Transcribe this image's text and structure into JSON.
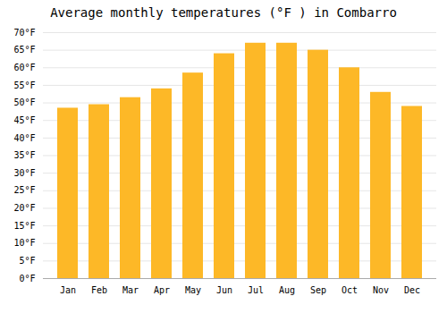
{
  "chart_data": {
    "type": "bar",
    "title": "Average monthly temperatures (°F ) in Combarro",
    "categories": [
      "Jan",
      "Feb",
      "Mar",
      "Apr",
      "May",
      "Jun",
      "Jul",
      "Aug",
      "Sep",
      "Oct",
      "Nov",
      "Dec"
    ],
    "values": [
      48.5,
      49.5,
      51.5,
      54,
      58.5,
      64,
      67,
      67,
      65,
      60,
      53,
      49
    ],
    "color": "#FDB827",
    "ylim": [
      0,
      70
    ],
    "yticks": [
      {
        "value": 0,
        "label": "0°F"
      },
      {
        "value": 5,
        "label": "5°F"
      },
      {
        "value": 10,
        "label": "10°F"
      },
      {
        "value": 15,
        "label": "15°F"
      },
      {
        "value": 20,
        "label": "20°F"
      },
      {
        "value": 25,
        "label": "25°F"
      },
      {
        "value": 30,
        "label": "30°F"
      },
      {
        "value": 35,
        "label": "35°F"
      },
      {
        "value": 40,
        "label": "40°F"
      },
      {
        "value": 45,
        "label": "45°F"
      },
      {
        "value": 50,
        "label": "50°F"
      },
      {
        "value": 55,
        "label": "55°F"
      },
      {
        "value": 60,
        "label": "60°F"
      },
      {
        "value": 65,
        "label": "65°F"
      },
      {
        "value": 70,
        "label": "70°F"
      }
    ],
    "grid": true
  }
}
